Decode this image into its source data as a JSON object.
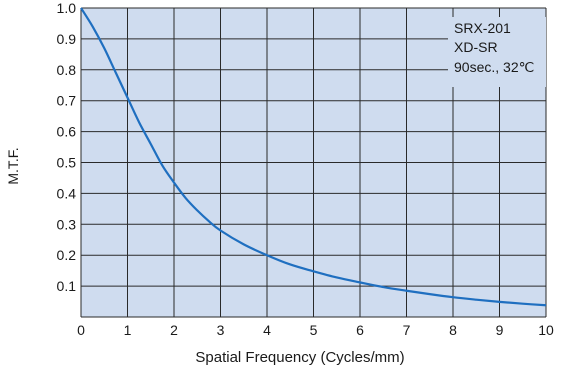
{
  "chart_data": {
    "type": "line",
    "title": "",
    "xlabel": "Spatial Frequency (Cycles/mm)",
    "ylabel": "M.T.F.",
    "xlim": [
      0,
      10
    ],
    "ylim": [
      0,
      1.0
    ],
    "grid": true,
    "x_ticks": [
      "0",
      "1",
      "2",
      "3",
      "4",
      "5",
      "6",
      "7",
      "8",
      "9",
      "10"
    ],
    "y_ticks": [
      "0.1",
      "0.2",
      "0.3",
      "0.4",
      "0.5",
      "0.6",
      "0.7",
      "0.8",
      "0.9",
      "1.0"
    ],
    "legend_position": "top-right",
    "legend_lines": [
      "SRX-201",
      "XD-SR",
      "90sec., 32℃"
    ],
    "colors": {
      "plot_background": "#cfdcef",
      "grid": "#2a2a2a",
      "line": "#1f6fc0"
    },
    "series": [
      {
        "x": [
          0,
          0.25,
          0.5,
          0.75,
          1,
          1.25,
          1.5,
          1.75,
          2,
          2.25,
          2.5,
          2.75,
          3,
          3.5,
          4,
          4.5,
          5,
          5.5,
          6,
          6.5,
          7,
          7.5,
          8,
          8.5,
          9,
          9.5,
          10
        ],
        "values": [
          1.0,
          0.94,
          0.87,
          0.79,
          0.71,
          0.63,
          0.56,
          0.49,
          0.435,
          0.385,
          0.345,
          0.31,
          0.28,
          0.235,
          0.2,
          0.17,
          0.148,
          0.128,
          0.112,
          0.097,
          0.085,
          0.074,
          0.064,
          0.056,
          0.049,
          0.043,
          0.038
        ]
      }
    ]
  }
}
